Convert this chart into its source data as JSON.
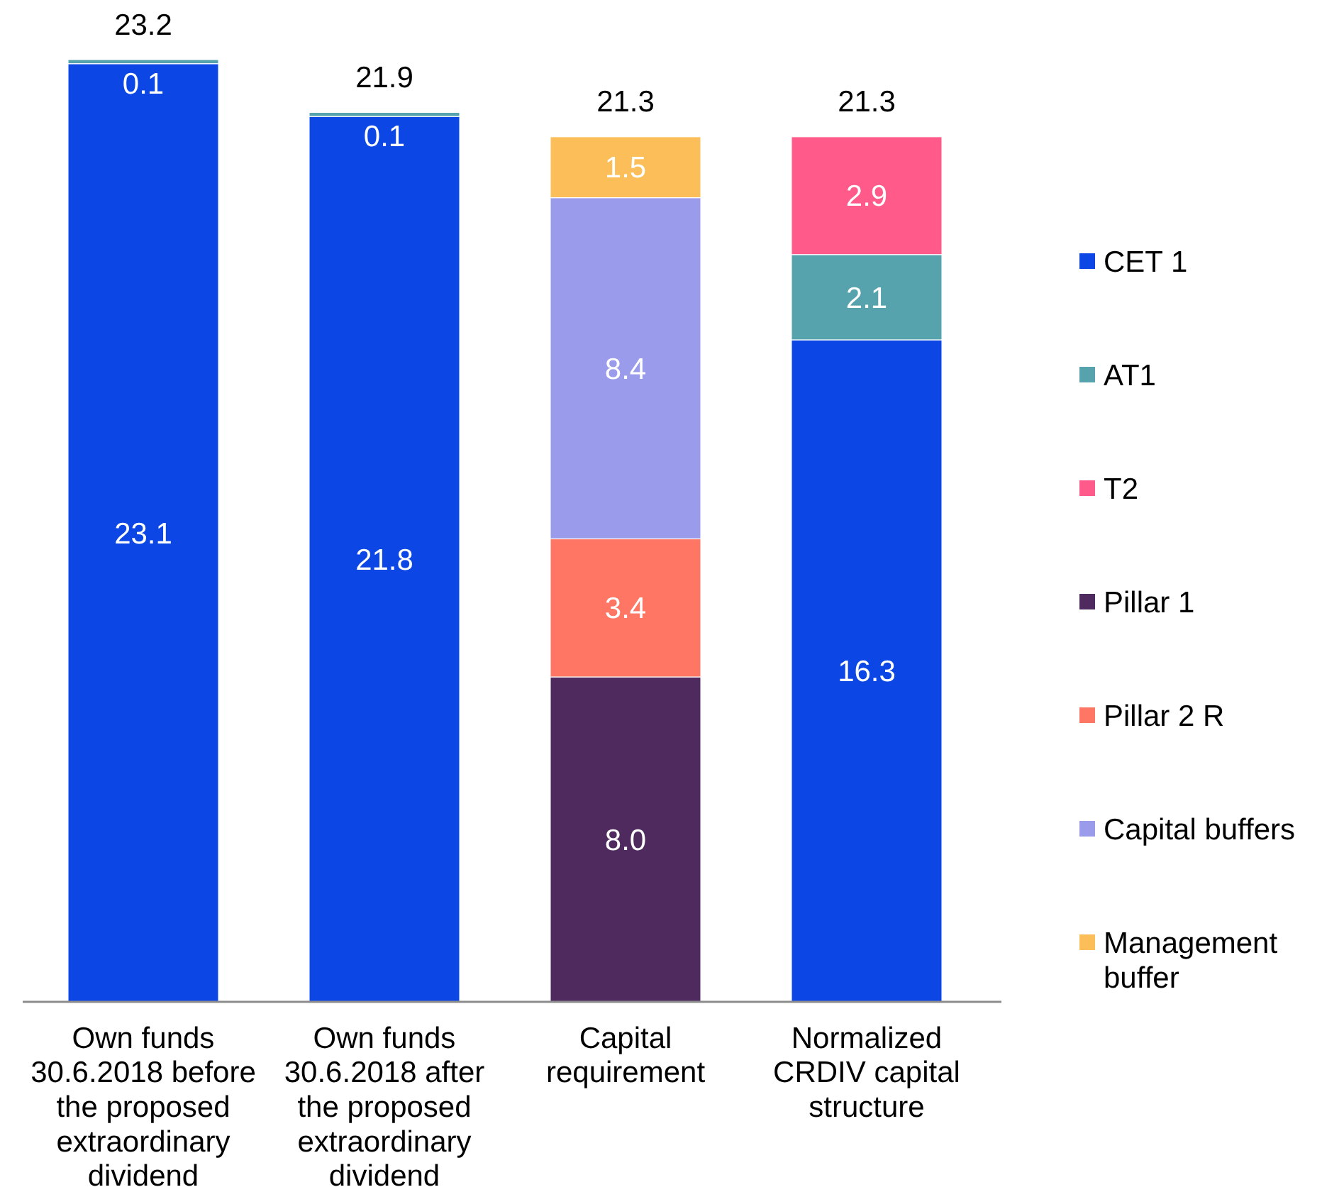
{
  "chart_data": {
    "type": "bar",
    "stacked": true,
    "categories": [
      "Own funds 30.6.2018 before the proposed extraordinary dividend",
      "Own funds 30.6.2018 after the proposed extraordinary dividend",
      "Capital requirement",
      "Normalized CRDIV capital structure"
    ],
    "series": [
      {
        "name": "CET 1",
        "color": "#0c46e4",
        "values": [
          23.1,
          21.8,
          null,
          16.3
        ],
        "value_labels": [
          "23.1",
          "21.8",
          null,
          "16.3"
        ]
      },
      {
        "name": "AT1",
        "color": "#56a3ae",
        "values": [
          0.1,
          0.1,
          null,
          2.1
        ],
        "value_labels": [
          "0.1",
          "0.1",
          null,
          "2.1"
        ]
      },
      {
        "name": "T2",
        "color": "#ff5a8a",
        "values": [
          null,
          null,
          null,
          2.9
        ],
        "value_labels": [
          null,
          null,
          null,
          "2.9"
        ]
      },
      {
        "name": "Pillar 1",
        "color": "#4f2a5e",
        "values": [
          null,
          null,
          8.0,
          null
        ],
        "value_labels": [
          null,
          null,
          "8.0",
          null
        ]
      },
      {
        "name": "Pillar 2 R",
        "color": "#ff7664",
        "values": [
          null,
          null,
          3.4,
          null
        ],
        "value_labels": [
          null,
          null,
          "3.4",
          null
        ]
      },
      {
        "name": "Capital buffers",
        "color": "#9a9bea",
        "values": [
          null,
          null,
          8.4,
          null
        ],
        "value_labels": [
          null,
          null,
          "8.4",
          null
        ]
      },
      {
        "name": "Management buffer",
        "color": "#fbbe58",
        "values": [
          null,
          null,
          1.5,
          null
        ],
        "value_labels": [
          null,
          null,
          "1.5",
          null
        ]
      }
    ],
    "totals": [
      "23.2",
      "21.9",
      "21.3",
      "21.3"
    ],
    "legend": "right",
    "tick_labels": "x"
  }
}
